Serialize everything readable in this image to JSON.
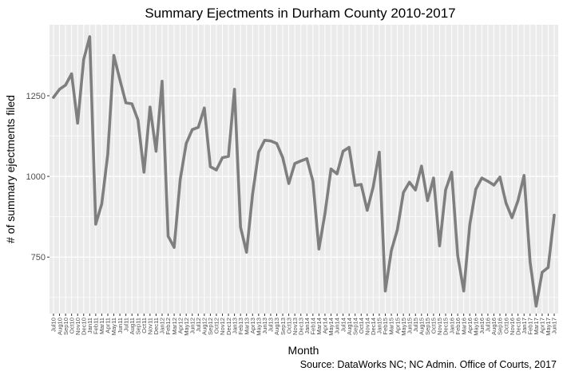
{
  "chart_data": {
    "type": "line",
    "title": "Summary Ejectments in Durham County 2010-2017",
    "xlabel": "Month",
    "ylabel": "# of summary ejectments filed",
    "caption": "Source: DataWorks NC; NC Admin. Office of Courts, 2017",
    "ylim": [
      575,
      1470
    ],
    "yticks": [
      750,
      1000,
      1250
    ],
    "grid": true,
    "background": "#ebebeb",
    "line_color": "#7f7f7f",
    "x": [
      "Jul10",
      "Aug10",
      "Sep10",
      "Oct10",
      "Nov10",
      "Dec10",
      "Jan11",
      "Feb11",
      "Mar11",
      "Apr11",
      "May11",
      "Jun11",
      "Jul11",
      "Aug11",
      "Sep11",
      "Oct11",
      "Nov11",
      "Dec11",
      "Jan12",
      "Feb12",
      "Mar12",
      "Apr12",
      "May12",
      "Jun12",
      "Jul12",
      "Aug12",
      "Sep12",
      "Oct12",
      "Nov12",
      "Dec12",
      "Jan13",
      "Feb13",
      "Mar13",
      "Apr13",
      "May13",
      "Jun13",
      "Jul13",
      "Aug13",
      "Sep13",
      "Oct13",
      "Nov13",
      "Dec13",
      "Jan14",
      "Feb14",
      "Mar14",
      "Apr14",
      "May14",
      "Jun14",
      "Jul14",
      "Aug14",
      "Sep14",
      "Oct14",
      "Nov14",
      "Dec14",
      "Jan15",
      "Feb15",
      "Mar15",
      "Apr15",
      "May15",
      "Jun15",
      "Jul15",
      "Aug15",
      "Sep15",
      "Oct15",
      "Nov15",
      "Dec15",
      "Jan16",
      "Feb16",
      "Mar16",
      "Apr16",
      "May16",
      "Jun16",
      "Jul16",
      "Aug16",
      "Sep16",
      "Oct16",
      "Nov16",
      "Dec16",
      "Jan17",
      "Feb17",
      "Mar17",
      "Apr17",
      "May17",
      "Jun17"
    ],
    "series": [
      {
        "values": [
          1245,
          1270,
          1283,
          1318,
          1165,
          1362,
          1433,
          852,
          915,
          1070,
          1375,
          1300,
          1228,
          1225,
          1175,
          1013,
          1215,
          1078,
          1295,
          815,
          780,
          990,
          1102,
          1145,
          1152,
          1212,
          1030,
          1020,
          1058,
          1062,
          1270,
          843,
          765,
          945,
          1075,
          1112,
          1110,
          1102,
          1058,
          978,
          1040,
          1048,
          1055,
          985,
          775,
          885,
          1023,
          1008,
          1078,
          1090,
          972,
          975,
          895,
          968,
          1075,
          645,
          770,
          835,
          950,
          982,
          958,
          1032,
          925,
          995,
          785,
          958,
          1013,
          755,
          645,
          850,
          960,
          995,
          985,
          973,
          998,
          918,
          872,
          925,
          1003,
          735,
          598,
          703,
          718,
          880
        ]
      }
    ]
  }
}
